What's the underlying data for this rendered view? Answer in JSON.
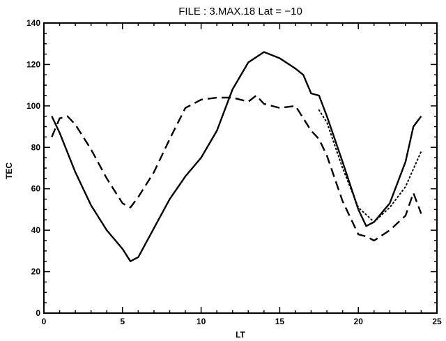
{
  "chart_data": {
    "type": "line",
    "title": "FILE : 3.MAX.18    Lat = −10",
    "xlabel": "LT",
    "ylabel": "TEC",
    "xlim": [
      0,
      25
    ],
    "ylim": [
      0,
      140
    ],
    "xticks": [
      0,
      5,
      10,
      15,
      20,
      25
    ],
    "yticks": [
      0,
      20,
      40,
      60,
      80,
      100,
      120,
      140
    ],
    "grid": false,
    "series": [
      {
        "style": "solid",
        "x": [
          0.5,
          1,
          2,
          3,
          4,
          5,
          5.5,
          6,
          7,
          8,
          9,
          10,
          11,
          12,
          13,
          14,
          15,
          16,
          16.5,
          17,
          17.5,
          18,
          19,
          20,
          20.5,
          21,
          22,
          23,
          23.5,
          24
        ],
        "y": [
          95,
          87,
          68,
          52,
          40,
          31,
          25,
          27,
          41,
          55,
          66,
          75,
          88,
          108,
          121,
          126,
          123,
          118,
          115,
          106,
          105,
          95,
          73,
          50,
          42,
          44,
          53,
          73,
          90,
          95
        ]
      },
      {
        "style": "dashed",
        "x": [
          0.5,
          1,
          1.5,
          2,
          3,
          4,
          5,
          5.5,
          6,
          7,
          8,
          9,
          10,
          11,
          12,
          13,
          13.5,
          14,
          15,
          16,
          17,
          17.5,
          18,
          19,
          20,
          20.5,
          21,
          22,
          23,
          23.5,
          24
        ],
        "y": [
          85,
          94,
          95,
          91,
          79,
          65,
          53,
          51,
          56,
          68,
          84,
          99,
          103,
          104,
          104,
          102,
          105,
          101,
          99,
          100,
          88,
          84,
          76,
          54,
          38,
          37,
          35,
          40,
          47,
          58,
          48
        ]
      },
      {
        "style": "dotted",
        "x": [
          17.5,
          18,
          19,
          20,
          21,
          22,
          23,
          24
        ],
        "y": [
          98,
          92,
          70,
          51,
          44,
          51,
          61,
          78
        ]
      }
    ]
  }
}
